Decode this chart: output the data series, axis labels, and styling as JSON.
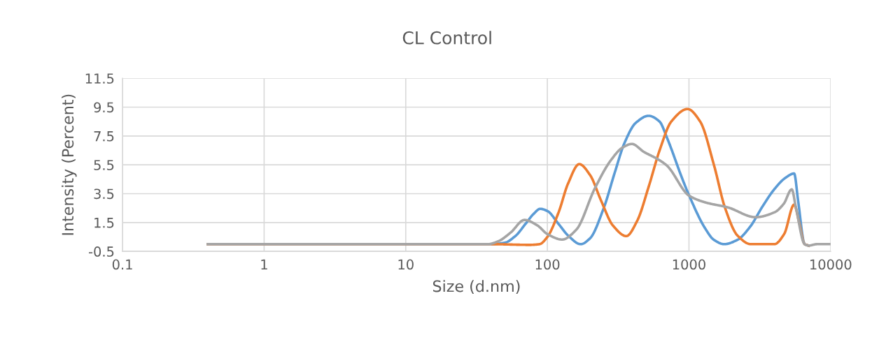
{
  "chart_data": {
    "type": "line",
    "title": "CL Control",
    "xlabel": "Size (d.nm)",
    "ylabel": "Intensity (Percent)",
    "log": "x",
    "xlim": [
      0.1,
      10000
    ],
    "xticks": [
      0.1,
      1,
      10,
      100,
      1000,
      10000
    ],
    "ylim": [
      -0.5,
      11.5
    ],
    "yticks": [
      -0.5,
      1.5,
      3.5,
      5.5,
      7.5,
      9.5,
      11.5
    ],
    "grid": true,
    "marker": "none",
    "line_style": "solid",
    "series": [
      {
        "color": "#5b9bd5",
        "x": [
          0.4,
          40,
          50,
          60,
          70,
          80,
          89,
          100,
          120,
          140,
          172,
          200,
          250,
          300,
          350,
          420,
          519,
          620,
          698,
          900,
          1000,
          1300,
          1500,
          1774,
          2200,
          2700,
          3300,
          4000,
          4800,
          5530,
          5900,
          6560,
          7000
        ],
        "values": [
          0,
          0,
          0.1,
          0.6,
          1.4,
          2.1,
          2.45,
          2.3,
          1.4,
          0.6,
          0,
          0.4,
          2.5,
          5,
          7,
          8.4,
          8.9,
          8.5,
          7.4,
          4.5,
          3.4,
          1.1,
          0.3,
          0,
          0.3,
          1.2,
          2.6,
          3.8,
          4.6,
          4.9,
          3,
          0,
          -0.1
        ]
      },
      {
        "color": "#ed7d31",
        "x": [
          0.4,
          40,
          75,
          88,
          100,
          120,
          140,
          168,
          200,
          240,
          290,
          361,
          430,
          520,
          620,
          750,
          977,
          1200,
          1500,
          1800,
          2200,
          2735,
          4010,
          4700,
          5530,
          6000,
          6560,
          7000
        ],
        "values": [
          0,
          0,
          -0.05,
          0,
          0.5,
          2.2,
          4.2,
          5.55,
          4.8,
          3,
          1.3,
          0.56,
          1.6,
          4,
          6.5,
          8.5,
          9.37,
          8.5,
          5.5,
          2.5,
          0.6,
          0,
          0,
          0.7,
          2.74,
          1.5,
          0,
          -0.1
        ]
      },
      {
        "color": "#a5a5a5",
        "x": [
          0.4,
          38,
          45,
          55,
          69,
          85,
          100,
          127,
          160,
          216,
          280,
          340,
          395,
          480,
          600,
          698,
          1000,
          1300,
          1880,
          2950,
          4000,
          4670,
          5320,
          5700,
          6560,
          7000,
          8000,
          10000
        ],
        "values": [
          0,
          0,
          0.2,
          0.8,
          1.68,
          1.3,
          0.7,
          0.32,
          1.0,
          3.85,
          5.8,
          6.7,
          6.95,
          6.4,
          5.9,
          5.45,
          3.37,
          2.9,
          2.55,
          1.87,
          2.2,
          2.8,
          3.8,
          2.5,
          0,
          -0.1,
          0,
          0
        ]
      }
    ]
  }
}
